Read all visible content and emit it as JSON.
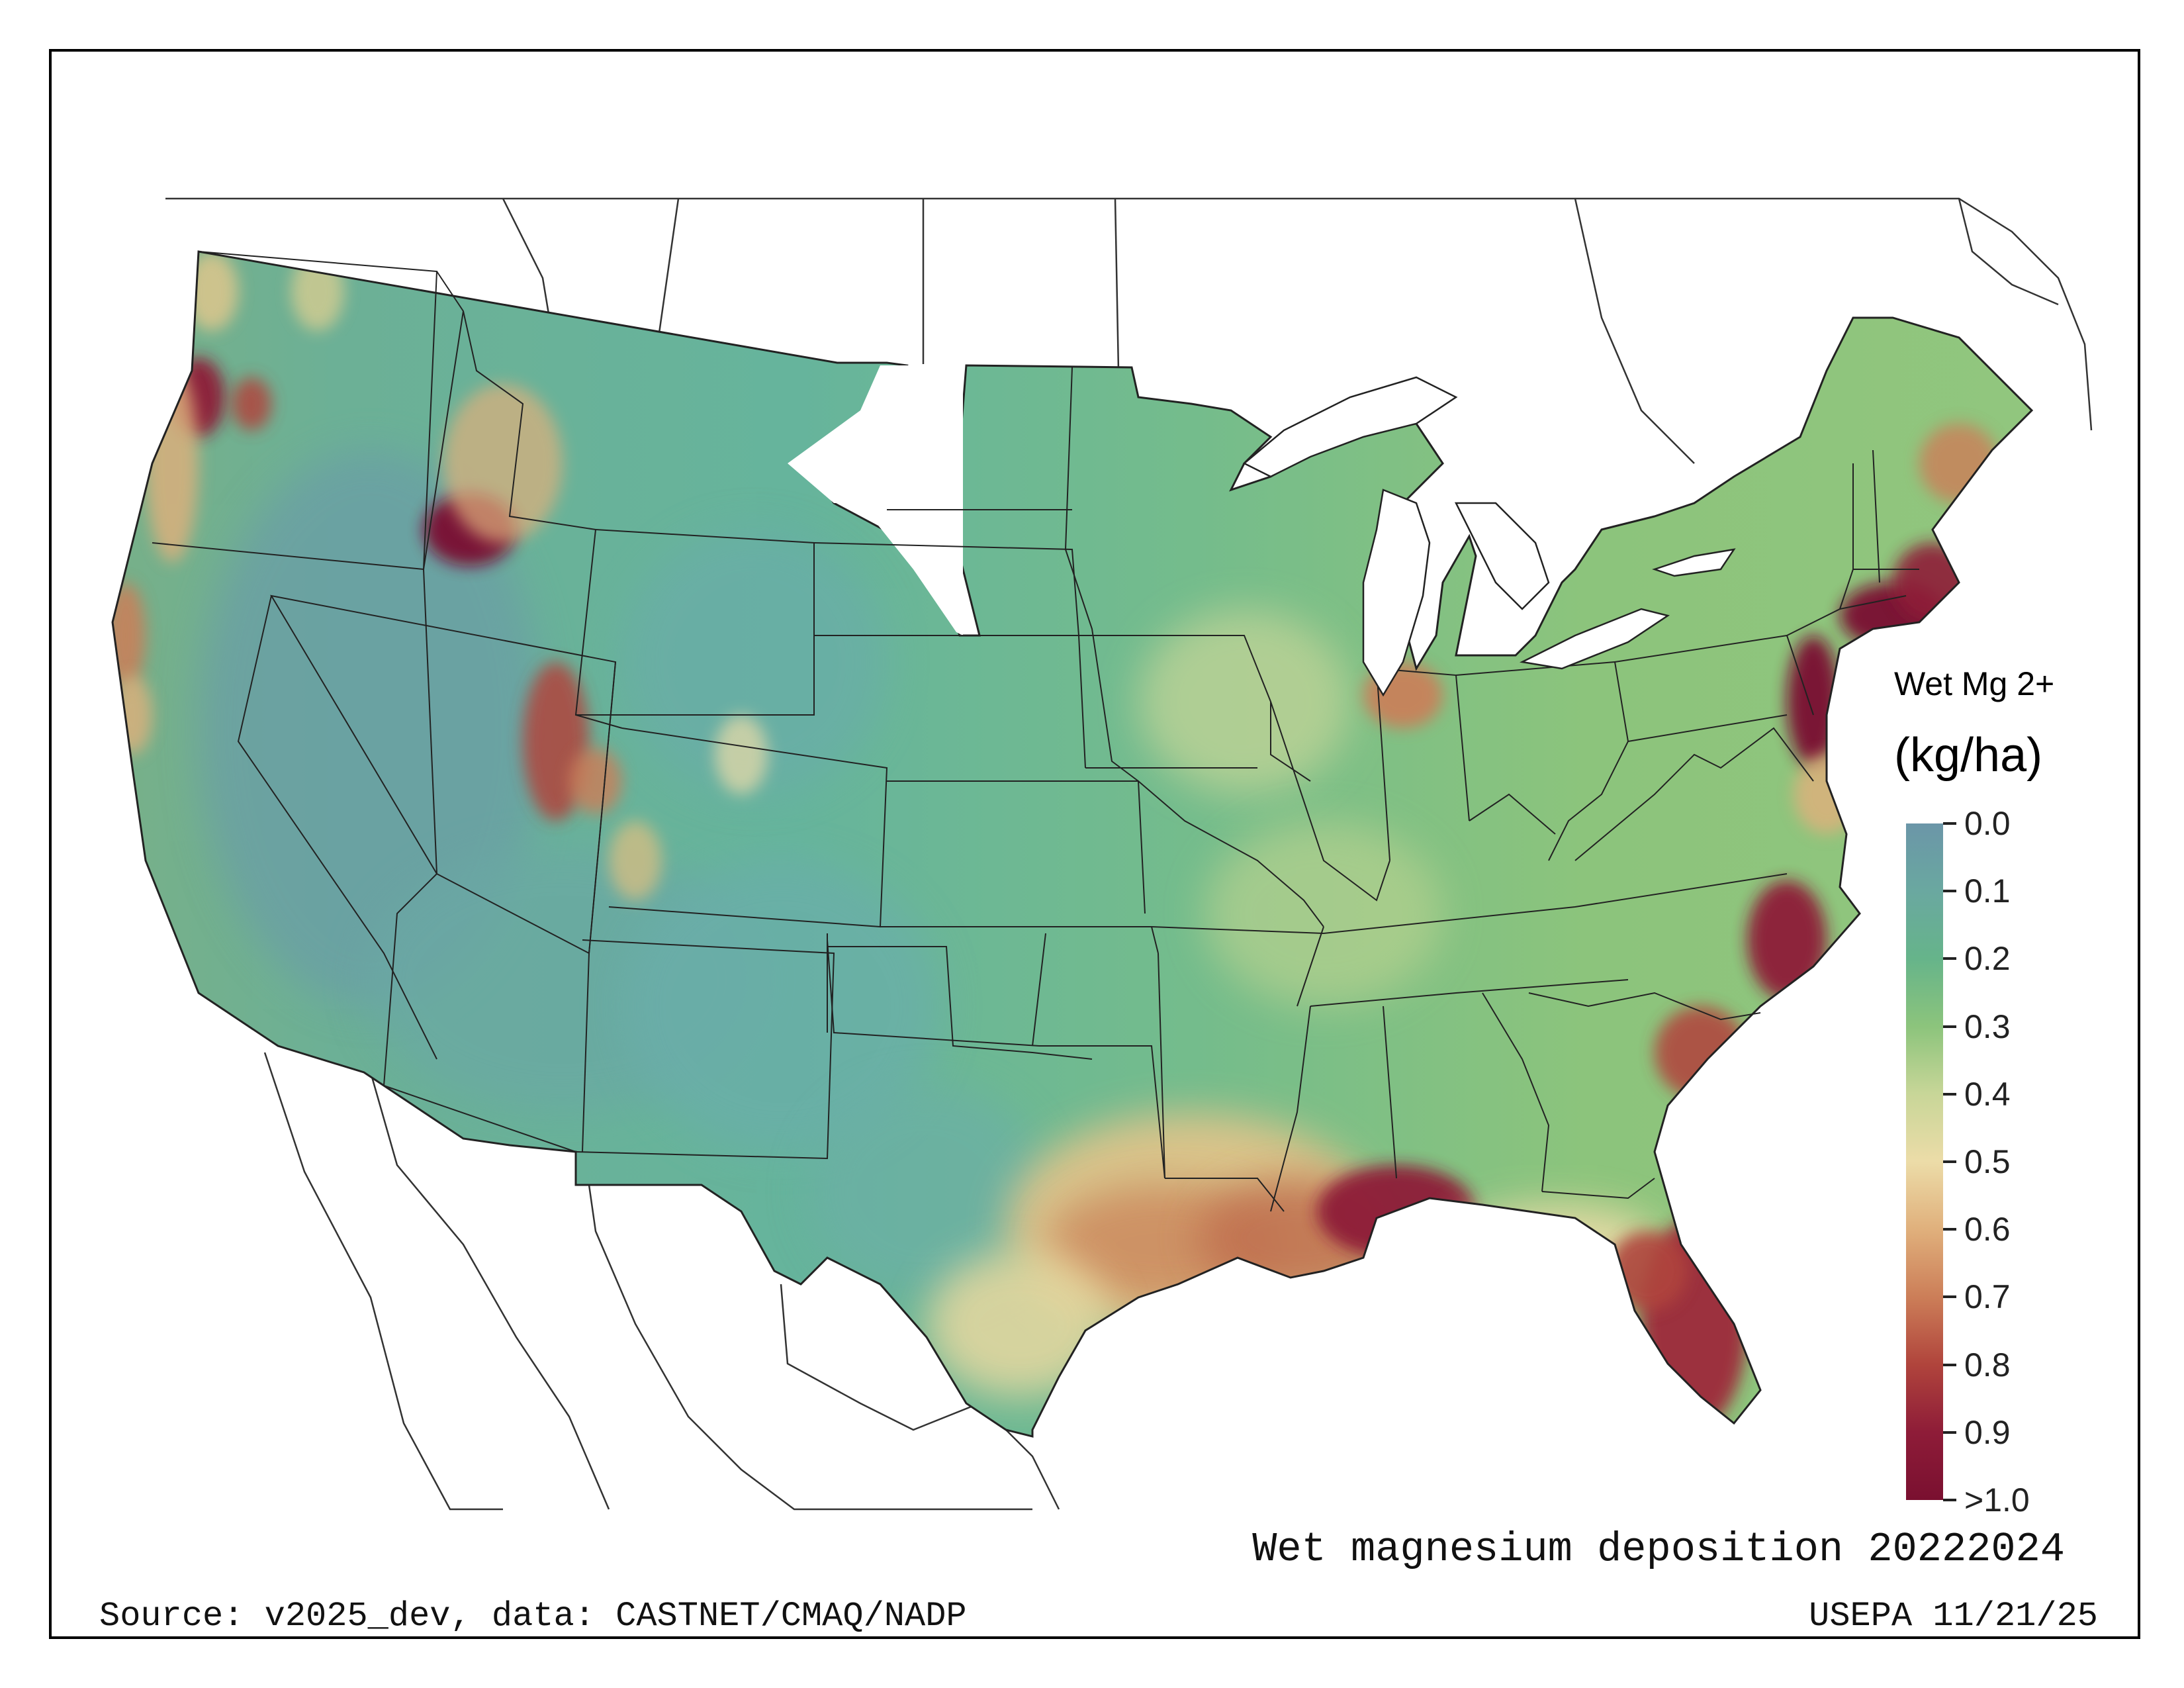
{
  "map": {
    "title": "Wet magnesium deposition 20222024",
    "source": "Source: v2025_dev, data: CASTNET/CMAQ/NADP",
    "credit": "USEPA 11/21/25",
    "region": "contiguous United States"
  },
  "legend": {
    "variable": "Wet Mg 2+",
    "units": "(kg/ha)",
    "ticks": [
      "0.0",
      "0.1",
      "0.2",
      "0.3",
      "0.4",
      "0.5",
      "0.6",
      "0.7",
      "0.8",
      "0.9",
      ">1.0"
    ],
    "colors": [
      "#6b96a8",
      "#6aa8a0",
      "#66b48a",
      "#8cc47c",
      "#c8d698",
      "#ecdca8",
      "#e0b07c",
      "#cc7e58",
      "#b0443c",
      "#8e1c38",
      "#7a1030"
    ]
  }
}
